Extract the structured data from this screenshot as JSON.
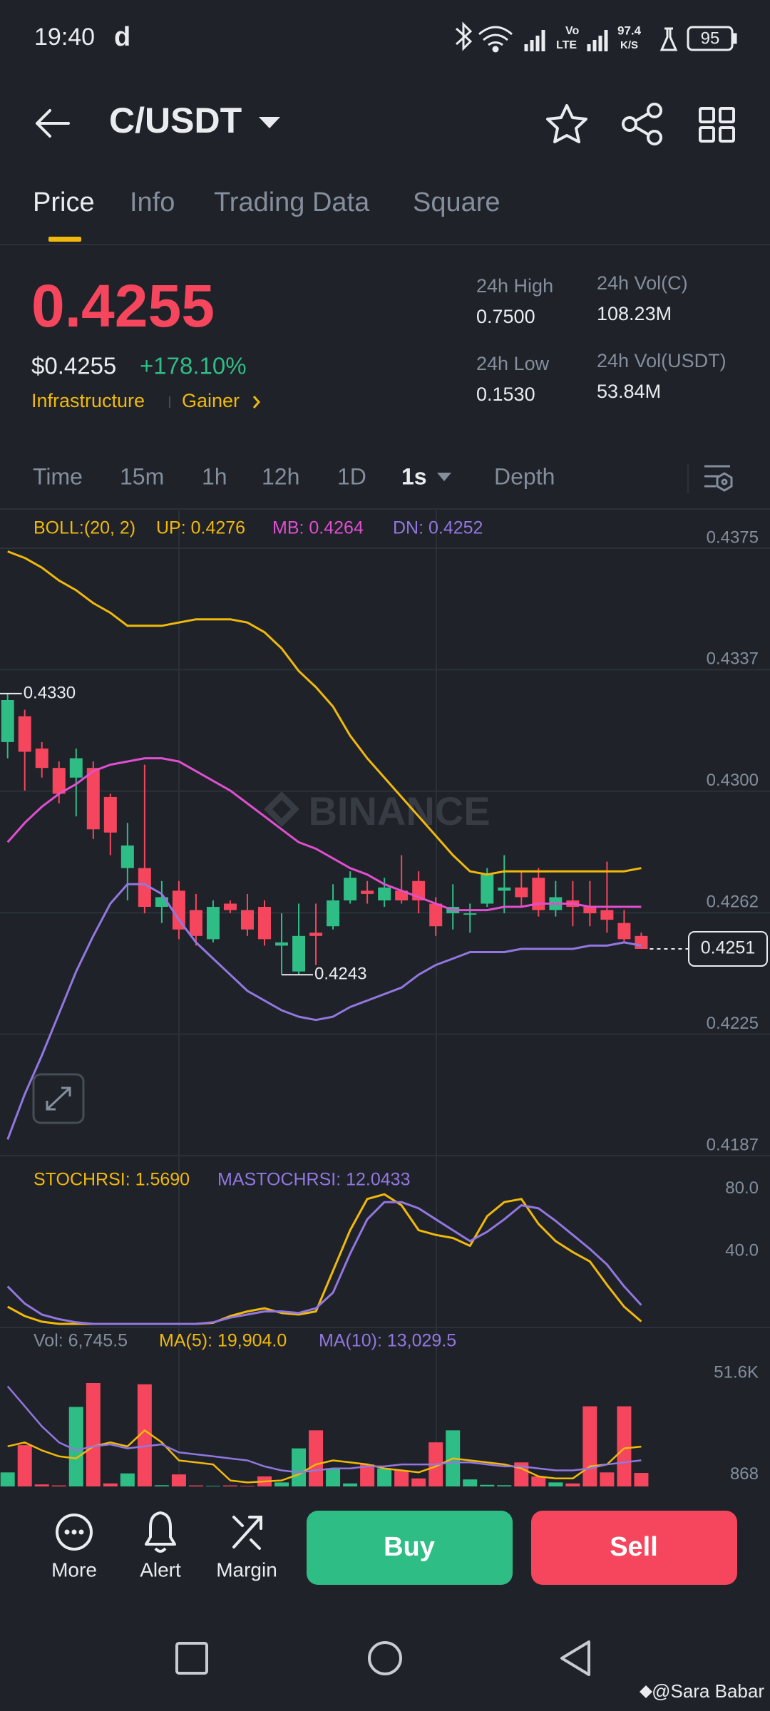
{
  "status_bar": {
    "time": "19:40",
    "app_icon": "d",
    "network_top": "Vo",
    "network_bottom": "LTE",
    "speed_value": "97.4",
    "speed_unit": "K/S",
    "battery": "95"
  },
  "header": {
    "pair": "C/USDT"
  },
  "tabs": [
    "Price",
    "Info",
    "Trading Data",
    "Square"
  ],
  "ticker": {
    "last_price": "0.4255",
    "usd_price": "$0.4255",
    "change": "+178.10%",
    "tag_1": "Infrastructure",
    "tag_2": "Gainer",
    "stats": [
      {
        "label": "24h High",
        "value": "0.7500"
      },
      {
        "label": "24h Low",
        "value": "0.1530"
      },
      {
        "label": "24h Vol(C)",
        "value": "108.23M"
      },
      {
        "label": "24h Vol(USDT)",
        "value": "53.84M"
      }
    ]
  },
  "intervals": [
    "Time",
    "15m",
    "1h",
    "12h",
    "1D",
    "1s",
    "Depth"
  ],
  "chart_data": [
    {
      "type": "candlestick",
      "up_color": "#2ebd85",
      "down_color": "#f6465d",
      "legend": [
        {
          "text": "BOLL:(20, 2)",
          "color": "#f0b90b"
        },
        {
          "text": "UP: 0.4276",
          "color": "#f0b90b"
        },
        {
          "text": "MB: 0.4264",
          "color": "#e04fd0"
        },
        {
          "text": "DN: 0.4252",
          "color": "#9277e0"
        }
      ],
      "open": [
        0.4315,
        0.4323,
        0.4313,
        0.4307,
        0.4304,
        0.4307,
        0.4298,
        0.4276,
        0.4276,
        0.4264,
        0.4269,
        0.4263,
        0.4254,
        0.4265,
        0.4263,
        0.4264,
        0.4252,
        0.4244,
        0.4256,
        0.4258,
        0.4266,
        0.4269,
        0.4266,
        0.4269,
        0.4272,
        0.4265,
        0.4262,
        0.4262,
        0.4265,
        0.4269,
        0.427,
        0.4273,
        0.4263,
        0.4266,
        0.4264,
        0.4263,
        0.4259,
        0.4255
      ],
      "high": [
        0.433,
        0.4325,
        0.4315,
        0.4309,
        0.4313,
        0.4309,
        0.4299,
        0.429,
        0.4308,
        0.4272,
        0.4272,
        0.4268,
        0.4266,
        0.4266,
        0.4268,
        0.4266,
        0.4262,
        0.4265,
        0.4265,
        0.4271,
        0.4275,
        0.4272,
        0.4273,
        0.428,
        0.4275,
        0.4267,
        0.4271,
        0.4265,
        0.4276,
        0.428,
        0.4275,
        0.4276,
        0.4272,
        0.4272,
        0.4272,
        0.4278,
        0.4263,
        0.4256
      ],
      "low": [
        0.431,
        0.43,
        0.4304,
        0.4296,
        0.4292,
        0.4285,
        0.428,
        0.4266,
        0.4262,
        0.4259,
        0.4254,
        0.4252,
        0.4253,
        0.4262,
        0.4255,
        0.4252,
        0.4243,
        0.4243,
        0.4246,
        0.4257,
        0.4265,
        0.4265,
        0.4264,
        0.4265,
        0.4262,
        0.4255,
        0.4257,
        0.4256,
        0.4264,
        0.4262,
        0.4264,
        0.4261,
        0.4261,
        0.4258,
        0.4258,
        0.4256,
        0.4253,
        0.4251
      ],
      "close": [
        0.4328,
        0.4312,
        0.4307,
        0.4299,
        0.431,
        0.4288,
        0.4287,
        0.4283,
        0.4264,
        0.4267,
        0.4257,
        0.4255,
        0.4264,
        0.4263,
        0.4257,
        0.4254,
        0.4253,
        0.4255,
        0.4255,
        0.4266,
        0.4273,
        0.4268,
        0.427,
        0.4266,
        0.4266,
        0.4258,
        0.4264,
        0.4262,
        0.4274,
        0.427,
        0.4267,
        0.4263,
        0.4267,
        0.4264,
        0.4262,
        0.426,
        0.4254,
        0.4251
      ],
      "series": [
        {
          "color": "#f0b90b",
          "values": [
            0.4374,
            0.4372,
            0.4369,
            0.4365,
            0.4362,
            0.4358,
            0.4355,
            0.4351,
            0.4351,
            0.4351,
            0.4352,
            0.4353,
            0.4353,
            0.4353,
            0.4352,
            0.4349,
            0.4344,
            0.4337,
            0.4332,
            0.4326,
            0.4317,
            0.431,
            0.4304,
            0.4298,
            0.4292,
            0.4286,
            0.428,
            0.4275,
            0.4274,
            0.4275,
            0.4275,
            0.4275,
            0.4275,
            0.4275,
            0.4275,
            0.4275,
            0.4275,
            0.4276
          ]
        },
        {
          "color": "#e04fd0",
          "values": [
            0.4284,
            0.429,
            0.4295,
            0.4299,
            0.4302,
            0.4306,
            0.4308,
            0.4309,
            0.431,
            0.431,
            0.4309,
            0.4306,
            0.4303,
            0.43,
            0.4296,
            0.4292,
            0.4288,
            0.4284,
            0.4282,
            0.4279,
            0.4276,
            0.4274,
            0.4271,
            0.4269,
            0.4267,
            0.4265,
            0.4263,
            0.4263,
            0.4263,
            0.4264,
            0.4264,
            0.4265,
            0.4265,
            0.4265,
            0.4264,
            0.4264,
            0.4264,
            0.4264
          ]
        },
        {
          "color": "#9277e0",
          "values": [
            0.4192,
            0.4206,
            0.4218,
            0.4231,
            0.4244,
            0.4255,
            0.4265,
            0.4271,
            0.4271,
            0.4268,
            0.426,
            0.4253,
            0.4248,
            0.4243,
            0.4238,
            0.4235,
            0.4232,
            0.423,
            0.4229,
            0.423,
            0.4233,
            0.4235,
            0.4237,
            0.4239,
            0.4243,
            0.4246,
            0.4248,
            0.425,
            0.425,
            0.425,
            0.4251,
            0.4251,
            0.4251,
            0.4251,
            0.4252,
            0.4252,
            0.4253,
            0.4252
          ]
        }
      ],
      "ylim": [
        0.4187,
        0.4375
      ],
      "yticks": [
        {
          "value": 0.4375,
          "label": "0.4375"
        },
        {
          "value": 0.43374,
          "label": "0.4337"
        },
        {
          "value": 0.42998,
          "label": "0.4300"
        },
        {
          "value": 0.42622,
          "label": "0.4262"
        },
        {
          "value": 0.42246,
          "label": "0.4225"
        },
        {
          "value": 0.4187,
          "label": "0.4187"
        }
      ],
      "grid": true,
      "high_label": {
        "value": 0.433,
        "label": "0.4330"
      },
      "low_label": {
        "value": 0.4243,
        "label": "0.4243"
      },
      "last_price": {
        "value": 0.4251,
        "label": "0.4251"
      }
    },
    {
      "type": "line",
      "legend": [
        {
          "text": "STOCHRSI: 1.5690",
          "color": "#f0b90b"
        },
        {
          "text": "MASTOCHRSI: 12.0433",
          "color": "#9277e0"
        }
      ],
      "series": [
        {
          "color": "#f0b90b",
          "values": [
            11,
            5,
            1.4,
            0,
            0,
            0,
            0,
            0,
            0,
            0,
            0,
            0,
            0.7,
            5,
            8,
            10,
            7,
            6,
            8,
            34,
            60,
            80,
            83,
            76,
            60,
            57,
            55,
            50,
            69,
            78,
            80,
            64,
            53,
            46,
            40,
            25,
            11,
            1.569
          ]
        },
        {
          "color": "#9277e0",
          "values": [
            24,
            13,
            6,
            3,
            1,
            0,
            0,
            0,
            0,
            0,
            0,
            0,
            1,
            4,
            6,
            8,
            8,
            7,
            10,
            20,
            45,
            67,
            78,
            78,
            74,
            67,
            60,
            53,
            59,
            67,
            76,
            74,
            66,
            57,
            48,
            38,
            24,
            12.0433
          ]
        }
      ],
      "ylim": [
        0,
        100
      ],
      "yticks": [
        {
          "value": 80,
          "label": "80.0"
        },
        {
          "value": 40,
          "label": "40.0"
        }
      ],
      "grid": false
    },
    {
      "type": "bar",
      "legend": [
        {
          "text": "Vol: 6,745.5",
          "color": "#848e9c"
        },
        {
          "text": "MA(5): 19,904.0",
          "color": "#f0b90b"
        },
        {
          "text": "MA(10): 13,029.5",
          "color": "#9277e0"
        }
      ],
      "values": [
        7000,
        20600,
        1000,
        500,
        39700,
        51600,
        1500,
        6500,
        51000,
        600,
        6000,
        500,
        300,
        500,
        300,
        5000,
        2000,
        19000,
        28000,
        9000,
        1500,
        11000,
        9000,
        8000,
        4000,
        22000,
        28000,
        3500,
        800,
        600,
        12000,
        5000,
        2000,
        1500,
        40000,
        7000,
        40000,
        6745.5
      ],
      "series": [
        {
          "color": "#f0b90b",
          "values": [
            20000,
            22000,
            18000,
            15000,
            14000,
            20000,
            22000,
            20000,
            28000,
            22000,
            13000,
            12000,
            11000,
            3000,
            2000,
            2500,
            3000,
            6000,
            11000,
            13000,
            12000,
            11000,
            9000,
            8000,
            7000,
            10000,
            14000,
            13000,
            12000,
            11000,
            9000,
            5000,
            4000,
            4000,
            10000,
            11000,
            19000,
            19904
          ]
        },
        {
          "color": "#9277e0",
          "values": [
            50000,
            40000,
            30000,
            22000,
            18000,
            20000,
            21000,
            19000,
            20000,
            21000,
            17000,
            16000,
            15000,
            14000,
            13000,
            10000,
            8000,
            7000,
            8000,
            9000,
            9000,
            10000,
            10000,
            11000,
            11000,
            11000,
            12000,
            12000,
            11000,
            10000,
            10000,
            9000,
            8000,
            8000,
            9000,
            11000,
            12000,
            13029.5
          ]
        }
      ],
      "ylim": [
        0,
        51600
      ],
      "yticks": [
        {
          "value": 51600,
          "label": "51.6K"
        },
        868
      ],
      "grid": false
    }
  ],
  "watermark": "BINANCE",
  "actions": [
    "More",
    "Alert",
    "Margin"
  ],
  "buttons": {
    "buy": "Buy",
    "sell": "Sell"
  },
  "credit": "@Sara Babar"
}
